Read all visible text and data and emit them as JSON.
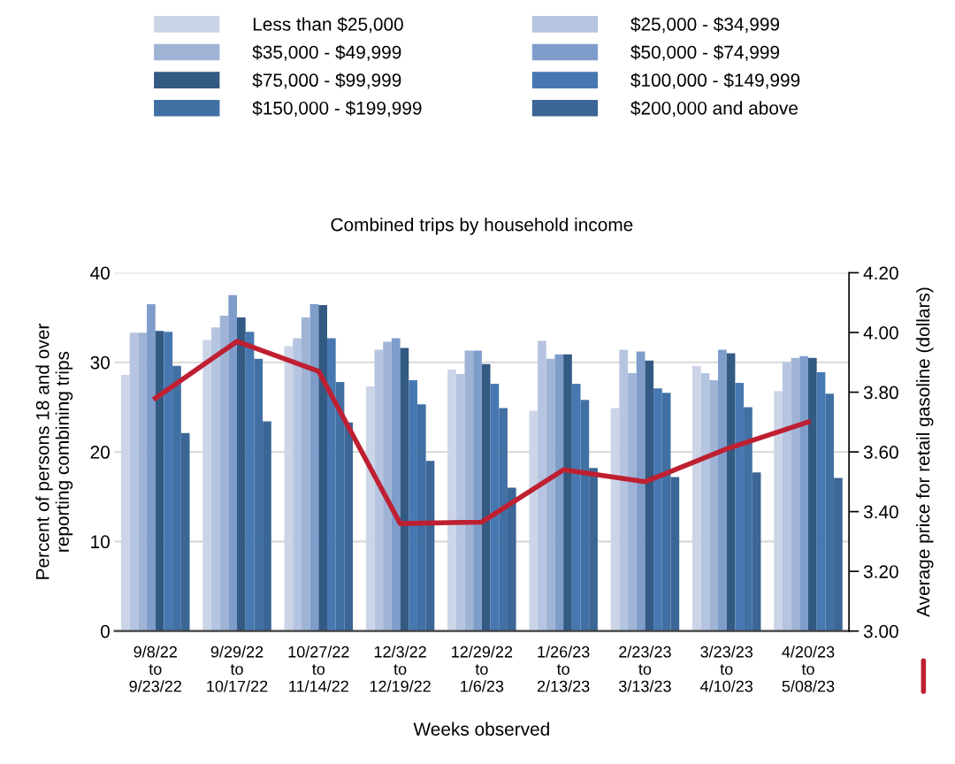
{
  "chart_data": {
    "type": "bar",
    "title": "Combined trips by household income",
    "xlabel": "Weeks observed",
    "ylabel": "Percent of persons 18 and over\nreporting combining trips",
    "y2label": "Average price for retail gasoline (dollars)",
    "categories": [
      "9/8/22\nto\n9/23/22",
      "9/29/22\nto\n10/17/22",
      "10/27/22\nto\n11/14/22",
      "12/3/22\nto\n12/19/22",
      "12/29/22\nto\n1/6/23",
      "1/26/23\nto\n2/13/23",
      "2/23/23\nto\n3/13/23",
      "3/23/23\nto\n4/10/23",
      "4/20/23\nto\n5/08/23"
    ],
    "series": [
      {
        "name": "Less than $25,000",
        "color": "#ccd5e7",
        "values": [
          28.6,
          32.5,
          31.8,
          27.3,
          29.2,
          24.6,
          24.9,
          29.6,
          26.8
        ]
      },
      {
        "name": "$25,000 - $34,999",
        "color": "#b5c4e0",
        "values": [
          33.3,
          33.9,
          32.7,
          31.4,
          28.7,
          32.4,
          31.4,
          28.8,
          30.0
        ]
      },
      {
        "name": "$35,000 - $49,999",
        "color": "#9fb3d5",
        "values": [
          33.3,
          35.2,
          35.0,
          32.3,
          31.3,
          30.4,
          28.8,
          28.0,
          30.5
        ]
      },
      {
        "name": "$50,000 - $74,999",
        "color": "#7f9dcb",
        "values": [
          36.5,
          37.5,
          36.5,
          32.7,
          31.3,
          30.9,
          31.2,
          31.4,
          30.7
        ]
      },
      {
        "name": "$75,000 - $99,999",
        "color": "#335a83",
        "values": [
          33.5,
          35.0,
          36.4,
          31.6,
          29.8,
          30.9,
          30.2,
          31.0,
          30.5
        ]
      },
      {
        "name": "$100,000 - $149,999",
        "color": "#4878b2",
        "values": [
          33.4,
          33.4,
          32.7,
          28.0,
          27.6,
          27.6,
          27.1,
          27.7,
          28.9
        ]
      },
      {
        "name": "$150,000 - $199,999",
        "color": "#4170a4",
        "values": [
          29.6,
          30.4,
          27.8,
          25.3,
          24.9,
          25.8,
          26.6,
          25.0,
          26.5
        ]
      },
      {
        "name": "$200,000 and above",
        "color": "#3b6695",
        "values": [
          22.1,
          23.4,
          23.3,
          19.0,
          16.0,
          18.2,
          17.2,
          17.7,
          17.1
        ]
      },
      {
        "type": "line",
        "axis": "y2",
        "color": "#be2032",
        "values": [
          3.78,
          3.97,
          3.87,
          3.36,
          3.365,
          3.54,
          3.5,
          3.61,
          3.7
        ]
      }
    ],
    "ylim": [
      0,
      40
    ],
    "yticks": [
      0,
      10,
      20,
      30,
      40
    ],
    "y2lim": [
      3.0,
      4.2
    ],
    "y2ticks": [
      {
        "value": 3.0,
        "label": "3.00"
      },
      {
        "value": 3.2,
        "label": "3.20"
      },
      {
        "value": 3.4,
        "label": "3.40"
      },
      {
        "value": 3.6,
        "label": "3.60"
      },
      {
        "value": 3.8,
        "label": "3.80"
      },
      {
        "value": 4.0,
        "label": "4.00"
      },
      {
        "value": 4.2,
        "label": "4.20"
      }
    ],
    "grid": "y",
    "legend": "top"
  }
}
